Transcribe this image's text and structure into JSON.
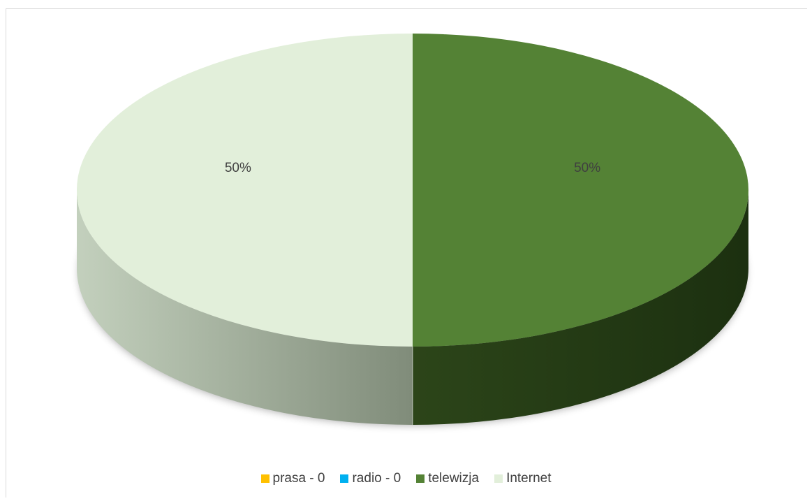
{
  "chart_data": {
    "type": "pie",
    "title": "",
    "categories": [
      "prasa - 0",
      "radio - 0",
      "telewizja",
      "Internet"
    ],
    "values": [
      0,
      0,
      50,
      50
    ],
    "colors": [
      "#ffc000",
      "#00b0f0",
      "#548235",
      "#e2efda"
    ],
    "data_labels": [
      "",
      "",
      "50%",
      "50%"
    ],
    "legend_position": "bottom",
    "style": "3d"
  }
}
